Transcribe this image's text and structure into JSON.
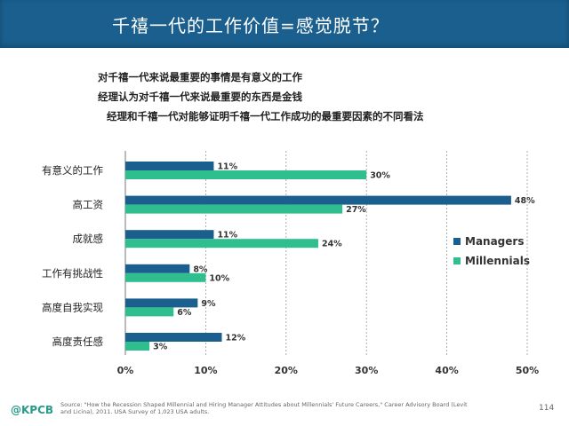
{
  "header": {
    "title": "千禧一代的工作价值=感觉脱节？"
  },
  "bullets": [
    "对千禧一代来说最重要的事情是有意义的工作",
    "经理认为对千禧一代来说最重要的东西是金钱",
    "经理和千禧一代对能够证明千禧一代工作成功的最重要因素的不同看法"
  ],
  "chart_data": {
    "type": "bar",
    "orientation": "horizontal",
    "categories": [
      "有意义的工作",
      "高工资",
      "成就感",
      "工作有挑战性",
      "高度自我实现",
      "高度责任感"
    ],
    "series": [
      {
        "name": "Managers",
        "color": "#1a5f8e",
        "values": [
          11,
          48,
          11,
          8,
          9,
          12
        ],
        "labels": [
          "11%",
          "48%",
          "11%",
          "8%",
          "9%",
          "12%"
        ]
      },
      {
        "name": "Millennials",
        "color": "#2fbf8f",
        "values": [
          30,
          27,
          24,
          10,
          6,
          3
        ],
        "labels": [
          "30%",
          "27%",
          "24%",
          "10%",
          "6%",
          "3%"
        ]
      }
    ],
    "xlim": [
      0,
      50
    ],
    "xticks": [
      0,
      10,
      20,
      30,
      40,
      50
    ],
    "xtick_labels": [
      "0%",
      "10%",
      "20%",
      "30%",
      "40%",
      "50%"
    ],
    "grid": "vertical dashed",
    "legend_position": "right"
  },
  "footer": {
    "logo": "@KPCB",
    "source": "Source: \"How the Recession Shaped Millennial and Hiring Manager Attitudes about Millennials' Future Careers,\" Career Advisory Board (Levit and Licina), 2011. USA Survey of 1,023 USA adults.",
    "page": "114"
  }
}
